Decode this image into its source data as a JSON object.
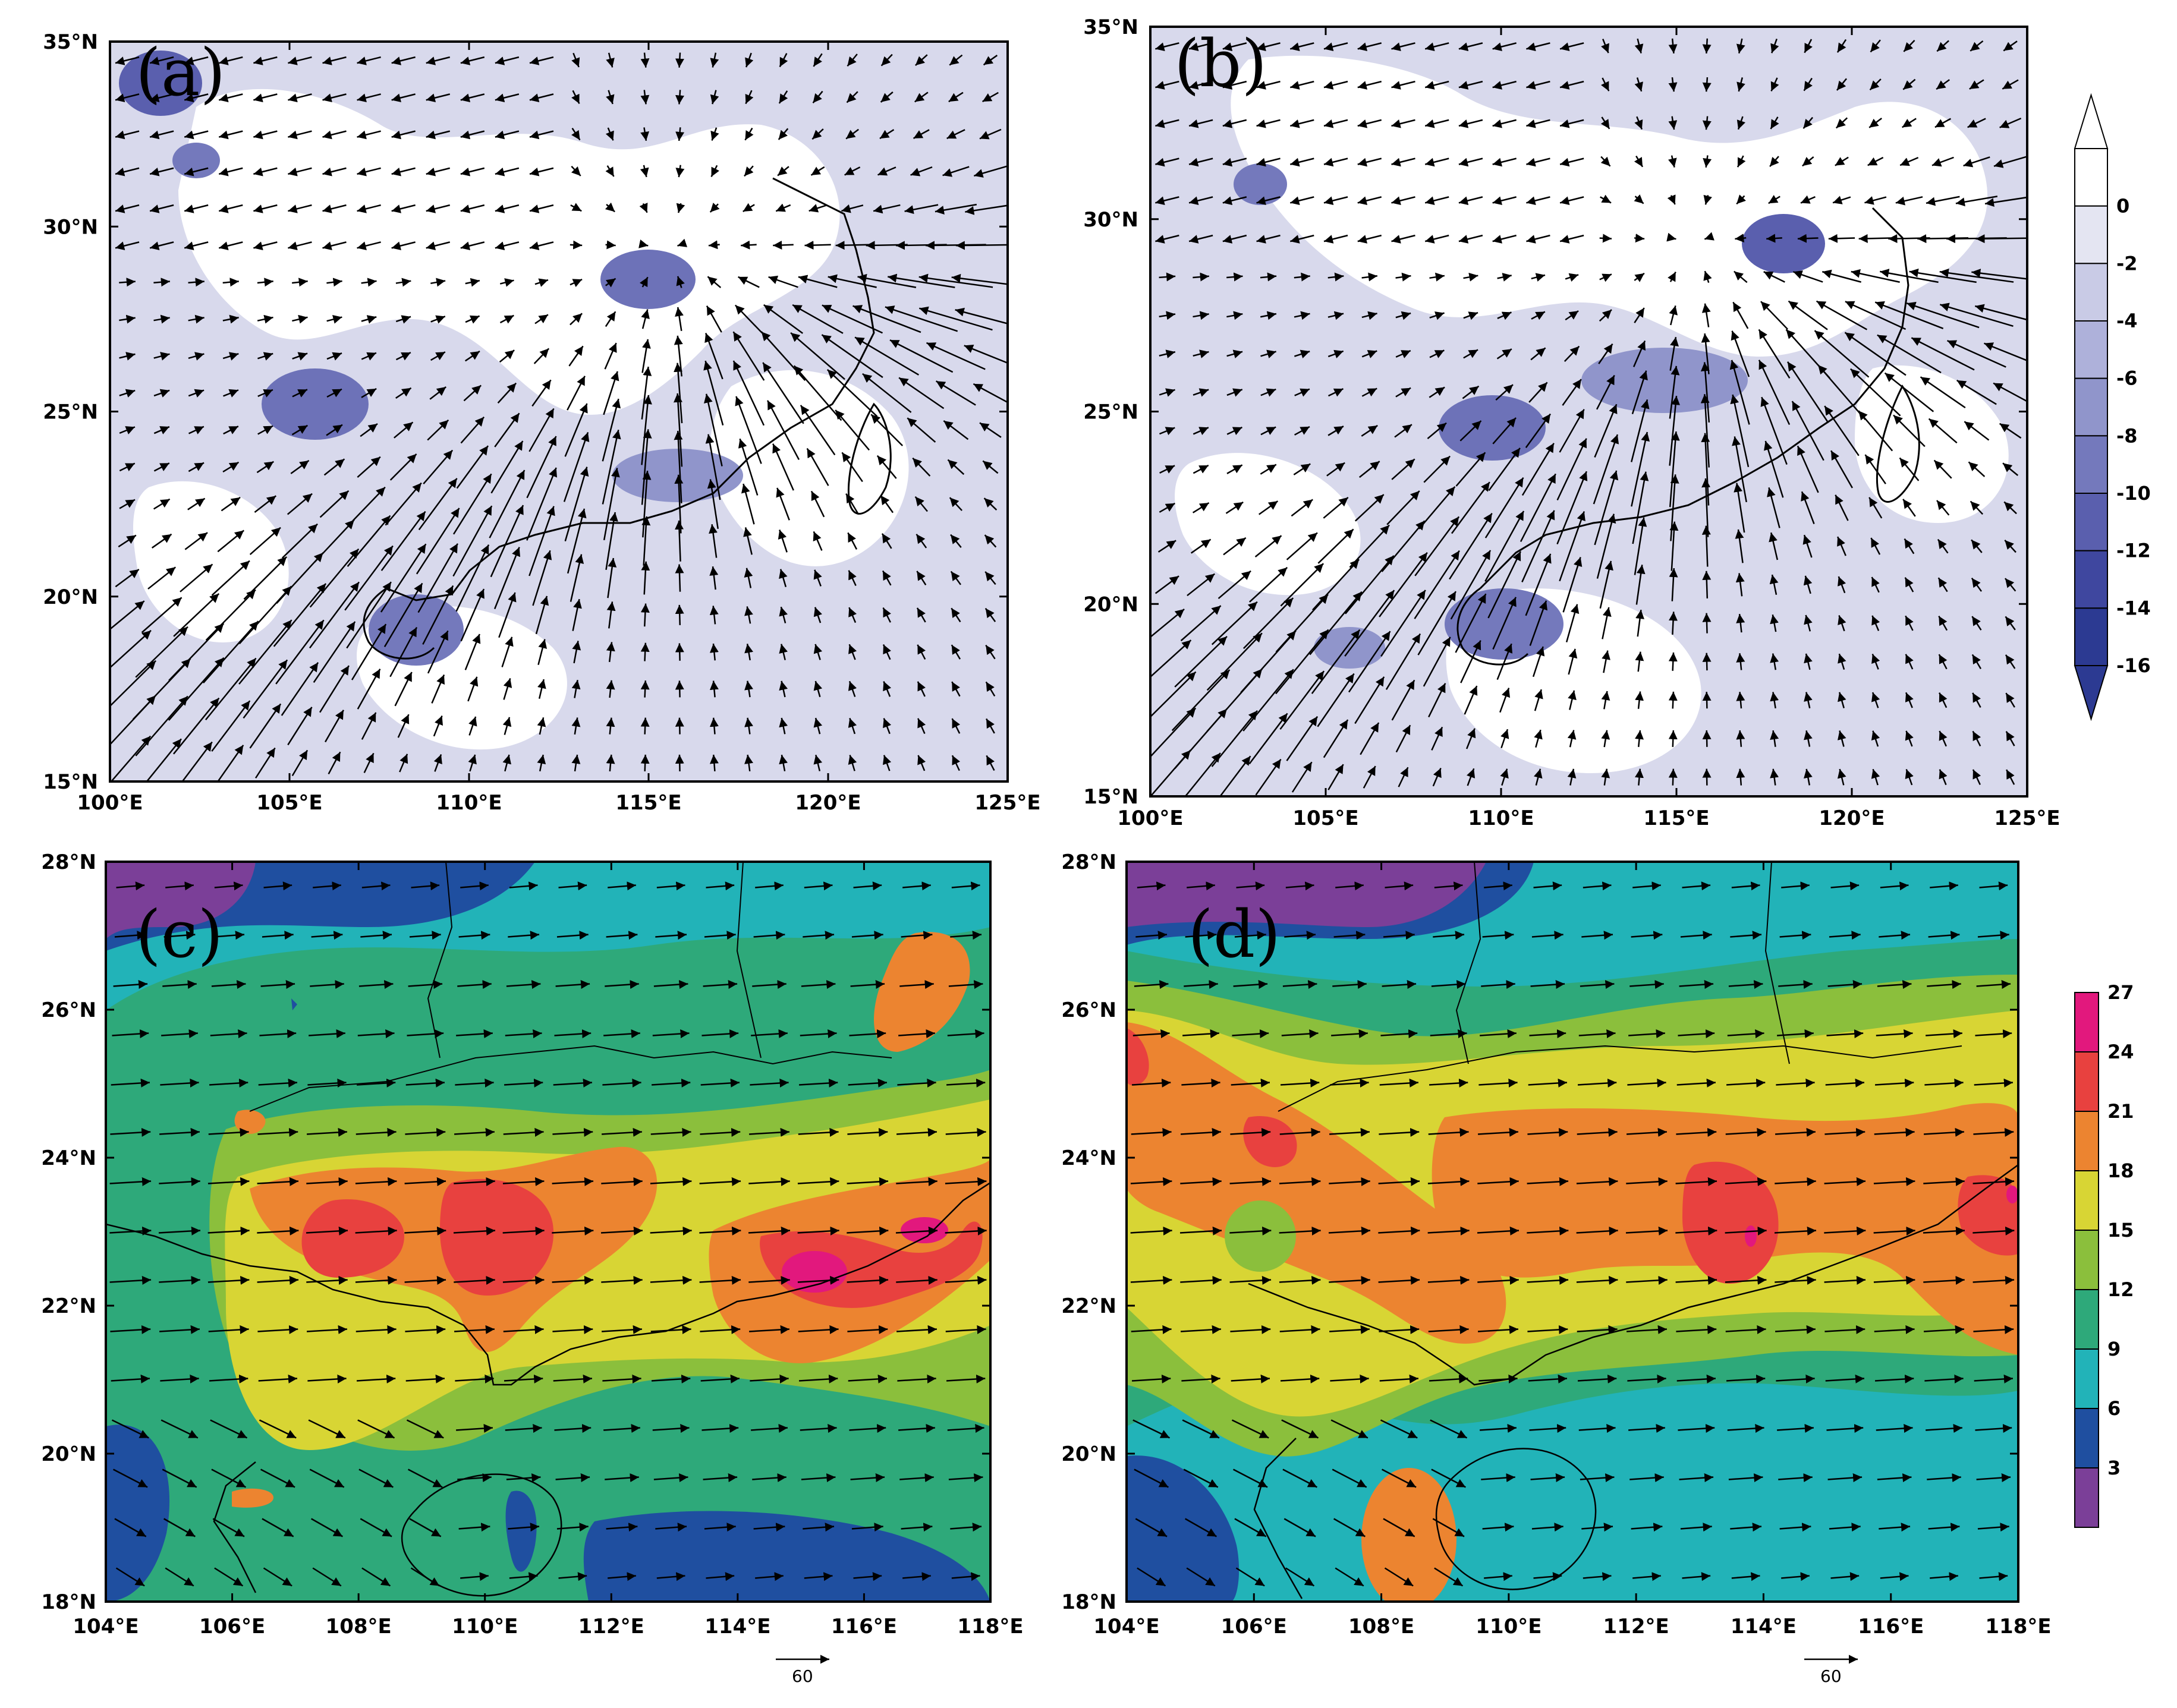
{
  "panels": [
    {
      "id": "a",
      "label": "(a)",
      "x_ticks": [
        "100°E",
        "105°E",
        "110°E",
        "115°E",
        "120°E",
        "125°E"
      ],
      "y_ticks": [
        "15°N",
        "20°N",
        "25°N",
        "30°N",
        "35°N"
      ]
    },
    {
      "id": "b",
      "label": "(b)",
      "x_ticks": [
        "100°E",
        "105°E",
        "110°E",
        "115°E",
        "120°E",
        "125°E"
      ],
      "y_ticks": [
        "15°N",
        "20°N",
        "25°N",
        "30°N",
        "35°N"
      ]
    },
    {
      "id": "c",
      "label": "(c)",
      "x_ticks": [
        "104°E",
        "106°E",
        "108°E",
        "110°E",
        "112°E",
        "114°E",
        "116°E",
        "118°E"
      ],
      "y_ticks": [
        "18°N",
        "20°N",
        "22°N",
        "24°N",
        "26°N",
        "28°N"
      ],
      "reference_vector_label": "60"
    },
    {
      "id": "d",
      "label": "(d)",
      "x_ticks": [
        "104°E",
        "106°E",
        "108°E",
        "110°E",
        "112°E",
        "114°E",
        "116°E",
        "118°E"
      ],
      "y_ticks": [
        "18°N",
        "20°N",
        "22°N",
        "24°N",
        "26°N",
        "28°N"
      ],
      "reference_vector_label": "60"
    }
  ],
  "colorbar_top": {
    "labels": [
      "0",
      "-2",
      "-4",
      "-6",
      "-8",
      "-10",
      "-12",
      "-14",
      "-16"
    ],
    "colors": [
      "#ffffff",
      "#e4e5f2",
      "#c9cbe6",
      "#aeb1da",
      "#9095cb",
      "#7479bc",
      "#5a5fae",
      "#3f479f",
      "#2c3a92",
      "#1f3a8a"
    ]
  },
  "colorbar_bottom": {
    "labels": [
      "3",
      "6",
      "9",
      "12",
      "15",
      "18",
      "21",
      "24",
      "27"
    ],
    "colors": [
      "#7b3f98",
      "#1f4fa0",
      "#22b3b8",
      "#2ea97a",
      "#8bbf3c",
      "#d8d534",
      "#ec8430",
      "#e8413f",
      "#e2187d"
    ]
  }
}
